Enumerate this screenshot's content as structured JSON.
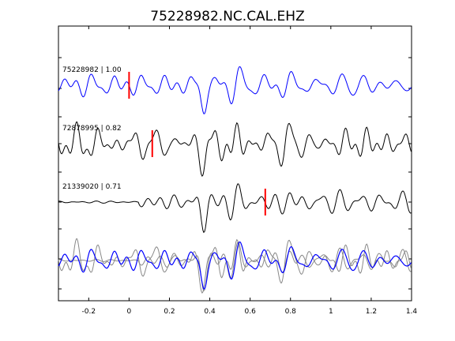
{
  "chart_data": {
    "type": "line",
    "title": "75228982.NC.CAL.EHZ",
    "xlabel": "",
    "ylabel": "",
    "xlim": [
      -0.35,
      1.4
    ],
    "x_ticks": [
      -0.2,
      0,
      0.2,
      0.4,
      0.6,
      0.8,
      1,
      1.2,
      1.4
    ],
    "x_tick_labels": [
      "-0.2",
      "0",
      "0.2",
      "0.4",
      "0.6",
      "0.8",
      "1",
      "1.2",
      "1.4"
    ],
    "grid": false,
    "colors": {
      "reference": "#0000ff",
      "other": "#000000",
      "overlay_other": "#888888",
      "pick": "#ff0000"
    },
    "traces": [
      {
        "label": "75228982 | 1.00",
        "id": "75228982",
        "correlation": 1.0,
        "pick_time": 0.0,
        "color": "#0000ff"
      },
      {
        "label": "72878995 | 0.82",
        "id": "72878995",
        "correlation": 0.82,
        "pick_time": 0.115,
        "color": "#000000"
      },
      {
        "label": "21339020 | 0.71",
        "id": "21339020",
        "correlation": 0.71,
        "pick_time": 0.675,
        "color": "#000000"
      }
    ],
    "overlay": {
      "description": "all traces overlaid",
      "reference_color": "#0000ff",
      "other_color": "#888888"
    }
  }
}
